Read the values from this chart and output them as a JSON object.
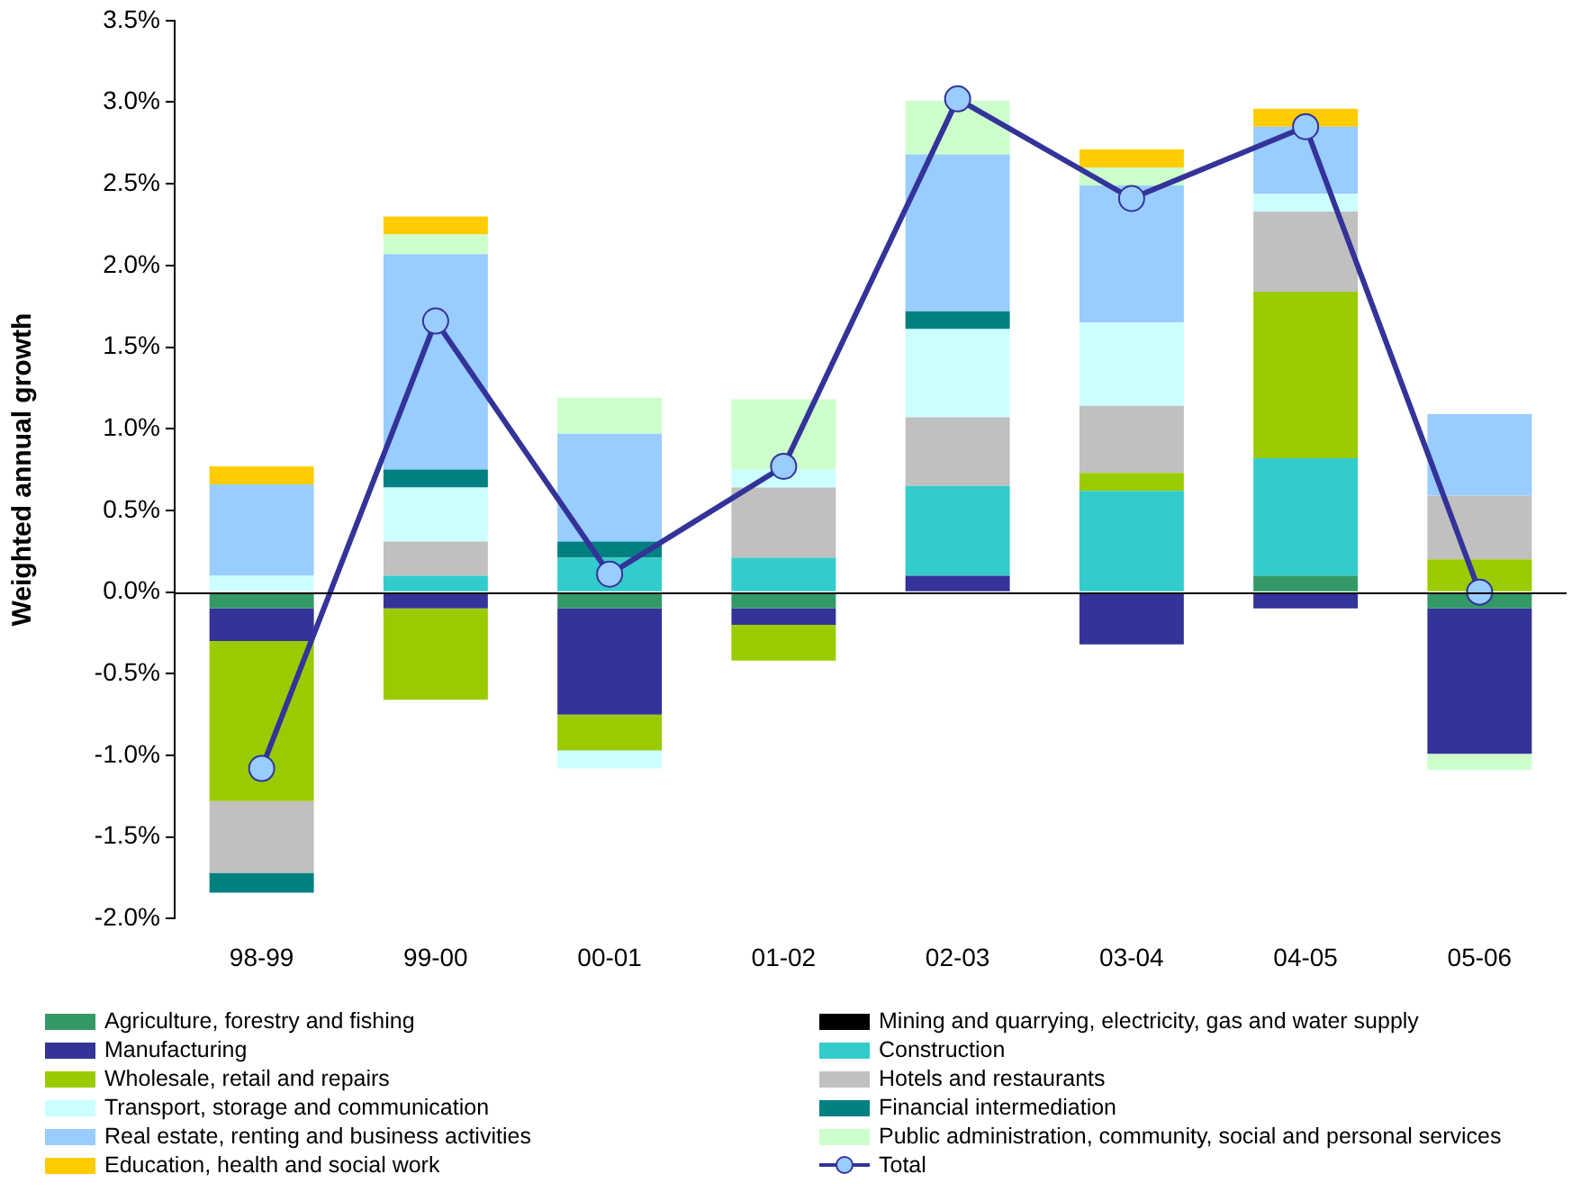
{
  "chart_data": {
    "type": "bar",
    "stacked": true,
    "ylabel": "Weighted annual growth",
    "categories": [
      "98-99",
      "99-00",
      "00-01",
      "01-02",
      "02-03",
      "03-04",
      "04-05",
      "05-06"
    ],
    "ylim": [
      -2.0,
      3.5
    ],
    "yticks": [
      {
        "value": -2.0,
        "label": "-2.0%"
      },
      {
        "value": -1.5,
        "label": "-1.5%"
      },
      {
        "value": -1.0,
        "label": "-1.0%"
      },
      {
        "value": -0.5,
        "label": "-0.5%"
      },
      {
        "value": 0,
        "label": "0.0%"
      },
      {
        "value": 0.5,
        "label": "0.5%"
      },
      {
        "value": 1.0,
        "label": "1.0%"
      },
      {
        "value": 1.5,
        "label": "1.5%"
      },
      {
        "value": 2.0,
        "label": "2.0%"
      },
      {
        "value": 2.5,
        "label": "2.5%"
      },
      {
        "value": 3.0,
        "label": "3.0%"
      },
      {
        "value": 3.5,
        "label": "3.5%"
      }
    ],
    "grid": false,
    "legend": "bottom",
    "ref_lines": [
      {
        "axis": "y",
        "value": 0,
        "color": "#000000"
      }
    ],
    "series": [
      {
        "name": "Agriculture, forestry and fishing",
        "color": "#339966",
        "values": [
          -0.1,
          0,
          -0.1,
          -0.1,
          0,
          0,
          0.1,
          -0.1
        ]
      },
      {
        "name": "Mining and quarrying, electricity, gas and water supply",
        "color": "#000000",
        "values": [
          0,
          0,
          0,
          0,
          0,
          0,
          0,
          0
        ]
      },
      {
        "name": "Manufacturing",
        "color": "#333399",
        "values": [
          -0.2,
          -0.1,
          -0.65,
          -0.1,
          0.1,
          -0.32,
          -0.1,
          -0.89
        ]
      },
      {
        "name": "Construction",
        "color": "#33cccc",
        "values": [
          0,
          0.1,
          0.21,
          0.21,
          0.55,
          0.62,
          0.72,
          0
        ]
      },
      {
        "name": "Wholesale, retail and repairs",
        "color": "#99cc00",
        "values": [
          -0.98,
          -0.56,
          -0.22,
          -0.22,
          0,
          0.11,
          1.02,
          0.2
        ]
      },
      {
        "name": "Hotels and restaurants",
        "color": "#c0c0c0",
        "values": [
          -0.44,
          0.21,
          0,
          0.43,
          0.42,
          0.41,
          0.49,
          0.39
        ]
      },
      {
        "name": "Transport, storage and communication",
        "color": "#ccffff",
        "values": [
          0.1,
          0.33,
          -0.11,
          0.11,
          0.54,
          0.51,
          0.11,
          0
        ]
      },
      {
        "name": "Financial intermediation",
        "color": "#008080",
        "values": [
          -0.12,
          0.11,
          0.1,
          0,
          0.11,
          0,
          0,
          0
        ]
      },
      {
        "name": "Real estate, renting and business activities",
        "color": "#99ccff",
        "values": [
          0.56,
          1.32,
          0.66,
          0,
          0.96,
          0.84,
          0.41,
          0.5
        ]
      },
      {
        "name": "Public administration, community, social and personal services",
        "color": "#ccffcc",
        "values": [
          0,
          0.12,
          0.22,
          0.43,
          0.33,
          0.11,
          0,
          -0.1
        ]
      },
      {
        "name": "Education, health and social work",
        "color": "#ffcc00",
        "values": [
          0.11,
          0.11,
          0,
          0,
          0,
          0.11,
          0.11,
          0
        ]
      },
      {
        "name": "Total",
        "type": "line",
        "color": "#333399",
        "marker": "circle",
        "values": [
          -1.08,
          1.66,
          0.11,
          0.77,
          3.02,
          2.41,
          2.85,
          0
        ]
      }
    ]
  }
}
